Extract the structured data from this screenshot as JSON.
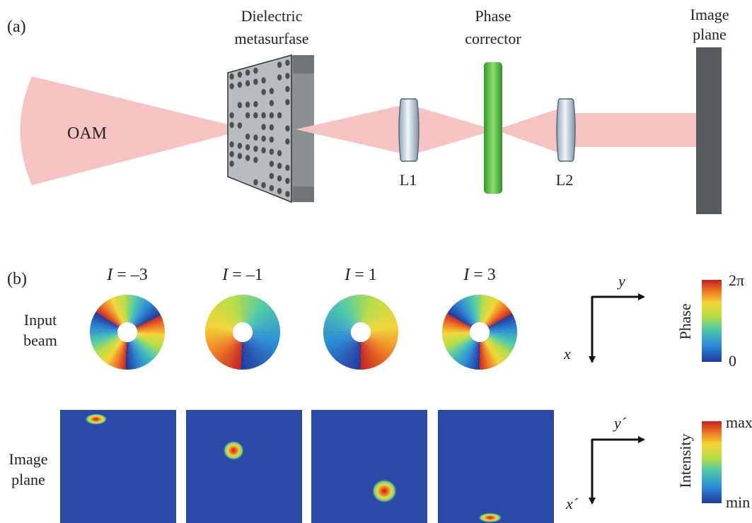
{
  "panel_a": {
    "label": "(a)",
    "beam_label": "OAM",
    "metasurface_label": [
      "Dielectric",
      "metasurfase"
    ],
    "phase_corrector_label": [
      "Phase",
      "corrector"
    ],
    "image_plane_label": [
      "Image",
      "plane"
    ],
    "lens1_label": "L1",
    "lens2_label": "L2",
    "colors": {
      "beam": "#f7c2c2",
      "metasurface": "#9ea3a6",
      "corrector": "#3fb53a",
      "screen": "#555a5d"
    }
  },
  "panel_b": {
    "label": "(b)",
    "modes": [
      {
        "symbol": "I",
        "eq": " = ",
        "value": "–3",
        "charge": -3,
        "spot_position": [
          0.31,
          0.08
        ]
      },
      {
        "symbol": "I",
        "eq": " = ",
        "value": "–1",
        "charge": -1,
        "spot_position": [
          0.41,
          0.35
        ]
      },
      {
        "symbol": "I",
        "eq": " = ",
        "value": "1",
        "charge": 1,
        "spot_position": [
          0.63,
          0.7
        ]
      },
      {
        "symbol": "I",
        "eq": " = ",
        "value": "3",
        "charge": 3,
        "spot_position": [
          0.45,
          0.93
        ]
      }
    ],
    "row1_label": [
      "Input",
      "beam"
    ],
    "row2_label": [
      "Image",
      "plane"
    ],
    "axes_top": {
      "x": "x",
      "y": "y"
    },
    "axes_bottom": {
      "x": "x´",
      "y": "y´"
    },
    "phase_bar": {
      "title": "Phase",
      "max": "2π",
      "min": "0"
    },
    "intensity_bar": {
      "title": "Intensity",
      "max": "max",
      "min": "min"
    },
    "colors": {
      "field": "#2b4aa8"
    }
  }
}
